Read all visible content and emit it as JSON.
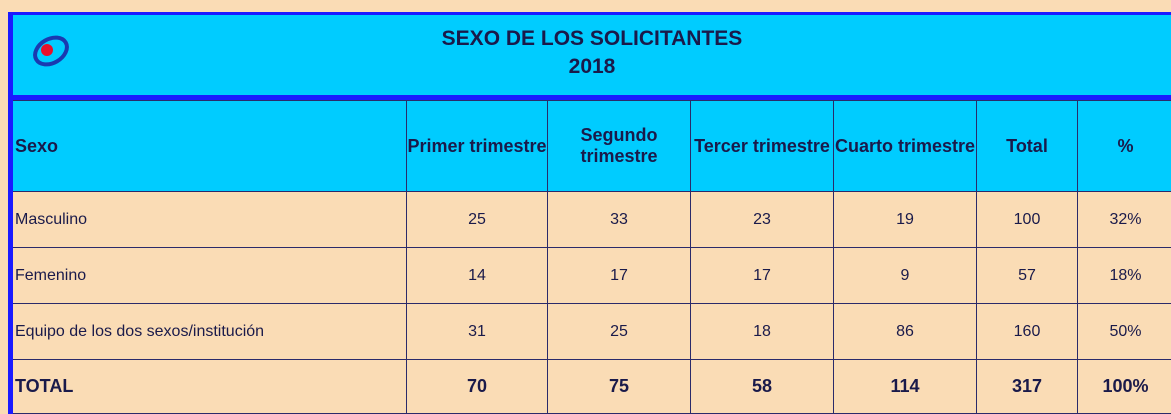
{
  "header": {
    "title": "SEXO DE LOS SOLICITANTES",
    "subtitle": "2018"
  },
  "table": {
    "columns": [
      "Sexo",
      "Primer trimestre",
      "Segundo trimestre",
      "Tercer trimestre",
      "Cuarto trimestre",
      "Total",
      "%"
    ],
    "rows": [
      [
        "Masculino",
        25,
        33,
        23,
        19,
        100,
        "32%"
      ],
      [
        "Femenino",
        14,
        17,
        17,
        9,
        57,
        "18%"
      ],
      [
        "Equipo de los dos sexos/institución",
        31,
        25,
        18,
        86,
        160,
        "50%"
      ]
    ],
    "total": [
      "TOTAL",
      70,
      75,
      58,
      114,
      317,
      "100%"
    ]
  }
}
